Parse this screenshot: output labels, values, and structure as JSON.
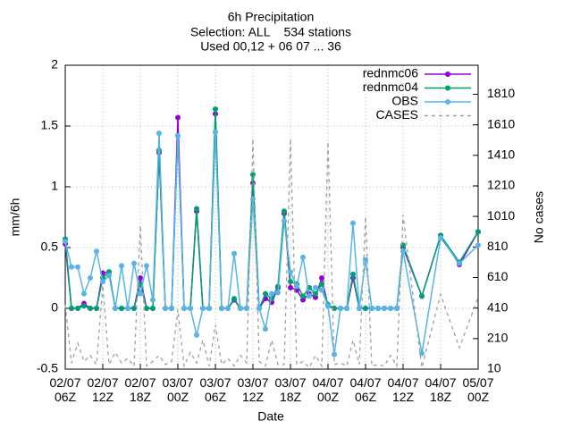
{
  "chart_data": {
    "type": "line",
    "title": [
      "6h Precipitation",
      "Selection: ALL    534 stations",
      "Used 00,12 + 06 07 ... 36"
    ],
    "xlabel": "Date",
    "ylabel": "mm/6h",
    "y2label": "No cases",
    "xlim": [
      "02/07 06Z",
      "05/07 00Z"
    ],
    "xticks": [
      "02/07 06Z",
      "02/07 12Z",
      "02/07 18Z",
      "03/07 00Z",
      "03/07 06Z",
      "03/07 12Z",
      "03/07 18Z",
      "04/07 00Z",
      "04/07 06Z",
      "04/07 12Z",
      "04/07 18Z",
      "05/07 00Z"
    ],
    "ylim": [
      -0.5,
      2
    ],
    "yticks": [
      -0.5,
      0,
      0.5,
      1,
      1.5,
      2
    ],
    "y2lim": [
      10,
      2000
    ],
    "y2ticks": [
      10,
      210,
      410,
      610,
      810,
      1010,
      1210,
      1410,
      1610,
      1810
    ],
    "grid": true,
    "legend": "top right",
    "x": [
      "02/07 06Z",
      "02/07 07Z",
      "02/07 08Z",
      "02/07 09Z",
      "02/07 10Z",
      "02/07 11Z",
      "02/07 12Z",
      "02/07 13Z",
      "02/07 14Z",
      "02/07 15Z",
      "02/07 16Z",
      "02/07 17Z",
      "02/07 18Z",
      "02/07 19Z",
      "02/07 20Z",
      "02/07 21Z",
      "02/07 22Z",
      "02/07 23Z",
      "03/07 00Z",
      "03/07 01Z",
      "03/07 02Z",
      "03/07 03Z",
      "03/07 04Z",
      "03/07 05Z",
      "03/07 06Z",
      "03/07 07Z",
      "03/07 08Z",
      "03/07 09Z",
      "03/07 10Z",
      "03/07 11Z",
      "03/07 12Z",
      "03/07 13Z",
      "03/07 14Z",
      "03/07 15Z",
      "03/07 16Z",
      "03/07 17Z",
      "03/07 18Z",
      "03/07 19Z",
      "03/07 20Z",
      "03/07 21Z",
      "03/07 22Z",
      "03/07 23Z",
      "04/07 00Z",
      "04/07 01Z",
      "04/07 02Z",
      "04/07 03Z",
      "04/07 04Z",
      "04/07 05Z",
      "04/07 06Z",
      "04/07 07Z",
      "04/07 08Z",
      "04/07 09Z",
      "04/07 10Z",
      "04/07 11Z",
      "04/07 12Z",
      "04/07 15Z",
      "04/07 18Z",
      "04/07 21Z",
      "05/07 00Z"
    ],
    "series": [
      {
        "name": "rednmc06",
        "color": "#9400d3",
        "values": [
          0.53,
          0,
          0,
          0.04,
          0,
          0,
          0.29,
          0.3,
          0,
          0,
          0,
          0,
          0.25,
          0,
          0,
          1.28,
          0,
          0,
          1.57,
          0,
          0,
          0.8,
          0,
          0,
          1.6,
          0,
          0,
          0.07,
          0,
          0,
          1.03,
          0,
          0.08,
          0.05,
          0.17,
          0.78,
          0.17,
          0.15,
          0.07,
          0.12,
          0.09,
          0.25,
          0.02,
          0,
          0,
          0,
          0.25,
          0,
          0,
          0,
          0,
          0,
          0,
          0,
          0.5,
          0.1,
          0.6,
          0.36,
          0.63
        ]
      },
      {
        "name": "rednmc04",
        "color": "#009e73",
        "values": [
          0.57,
          0,
          0,
          0.02,
          0,
          0,
          0.25,
          0.3,
          0,
          0,
          0,
          0,
          0.2,
          0,
          0,
          1.3,
          0,
          0,
          1.42,
          0,
          0,
          0.82,
          0,
          0,
          1.64,
          0,
          0,
          0.08,
          0,
          0,
          1.1,
          0,
          0.12,
          0.08,
          0.18,
          0.8,
          0.22,
          0.2,
          0.1,
          0.17,
          0.12,
          0.2,
          0.03,
          0,
          0,
          0,
          0.28,
          0,
          0,
          0,
          0,
          0,
          0,
          0,
          0.52,
          0.1,
          0.6,
          0.38,
          0.63
        ]
      },
      {
        "name": "OBS",
        "color": "#56b4e9",
        "values": [
          0.55,
          0.34,
          0.34,
          0.12,
          0.25,
          0.47,
          0.22,
          0.27,
          0,
          0.35,
          0,
          0.37,
          0.12,
          0.35,
          0.07,
          1.44,
          0,
          0,
          1.42,
          0,
          0,
          -0.22,
          0,
          0,
          1.45,
          0,
          0,
          0.45,
          0,
          0,
          0.9,
          0,
          -0.17,
          0.12,
          0.13,
          0.72,
          0.3,
          0.18,
          0.42,
          0.1,
          0.17,
          0.15,
          0.02,
          -0.38,
          0,
          0,
          0.7,
          0,
          0.4,
          0,
          0,
          0,
          0,
          0,
          0.47,
          -0.37,
          0.58,
          0.37,
          0.52
        ]
      },
      {
        "name": "CASES",
        "color": "#a0a0a0",
        "axis": "y2",
        "dashed": true,
        "values": [
          430,
          50,
          180,
          60,
          100,
          40,
          560,
          40,
          120,
          50,
          80,
          30,
          950,
          30,
          60,
          100,
          40,
          60,
          400,
          30,
          120,
          50,
          200,
          30,
          300,
          40,
          80,
          30,
          100,
          50,
          1520,
          60,
          30,
          200,
          40,
          40,
          1520,
          40,
          60,
          20,
          100,
          30,
          1500,
          40,
          50,
          30,
          200,
          40,
          1010,
          30,
          40,
          30,
          100,
          30,
          1020,
          20,
          500,
          150,
          480
        ]
      }
    ]
  }
}
